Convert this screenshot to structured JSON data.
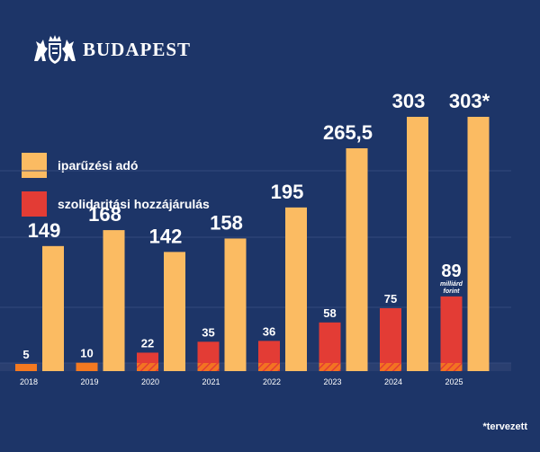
{
  "brand": {
    "name": "BUDAPEST",
    "logo_icon": "budapest-coat-of-arms-icon"
  },
  "colors": {
    "background": "#1d3568",
    "business_tax": "#fbbb62",
    "solidarity": "#e33c35",
    "solidarity_early": "#f47920",
    "text": "#ffffff"
  },
  "legend": [
    {
      "label": "iparűzési adó",
      "color": "#fbbb62"
    },
    {
      "label": "szolidaritási hozzájárulás",
      "color": "#e33c35"
    }
  ],
  "footnote": "*tervezett",
  "chart_data": {
    "type": "bar",
    "title": "",
    "xlabel": "",
    "ylabel": "",
    "ylim": [
      0,
      310
    ],
    "unit_label": "milliárd forint",
    "categories": [
      "2018",
      "2019",
      "2020",
      "2021",
      "2022",
      "2023",
      "2024",
      "2025"
    ],
    "series": [
      {
        "name": "szolidaritási hozzájárulás",
        "values": [
          5,
          10,
          22,
          35,
          36,
          58,
          75,
          89
        ],
        "labels": [
          "5",
          "10",
          "22",
          "35",
          "36",
          "58",
          "75",
          "89"
        ]
      },
      {
        "name": "iparűzési adó",
        "values": [
          149,
          168,
          142,
          158,
          195,
          265.5,
          303,
          303
        ],
        "labels": [
          "149",
          "168",
          "142",
          "158",
          "195",
          "265,5",
          "303",
          "303*"
        ]
      }
    ]
  }
}
